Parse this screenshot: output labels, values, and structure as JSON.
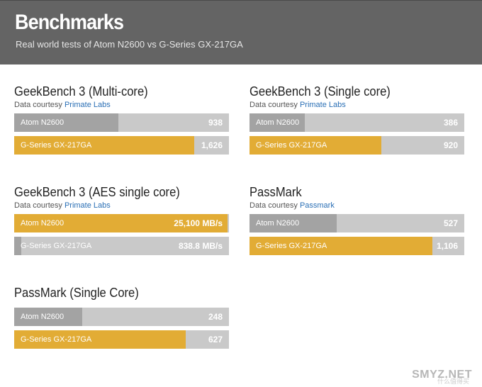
{
  "header": {
    "title": "Benchmarks",
    "subtitle": "Real world tests of Atom N2600 vs G-Series GX-217GA"
  },
  "colors": {
    "atom": "#a3a3a3",
    "gseries": "#e2ac35",
    "track": "#c9c9c9"
  },
  "credit_prefix": "Data courtesy",
  "chart_data": [
    {
      "type": "bar",
      "title": "GeekBench 3 (Multi-core)",
      "source": "Primate Labs",
      "max": 1940,
      "bars": [
        {
          "name": "Atom N2600",
          "value": 938,
          "display": "938",
          "color": "atom"
        },
        {
          "name": "G-Series GX-217GA",
          "value": 1626,
          "display": "1,626",
          "color": "gseries"
        }
      ]
    },
    {
      "type": "bar",
      "title": "GeekBench 3 (Single core)",
      "source": "Primate Labs",
      "max": 1500,
      "bars": [
        {
          "name": "Atom N2600",
          "value": 386,
          "display": "386",
          "color": "atom"
        },
        {
          "name": "G-Series GX-217GA",
          "value": 920,
          "display": "920",
          "color": "gseries"
        }
      ]
    },
    {
      "type": "bar",
      "title": "GeekBench 3 (AES single core)",
      "source": "Primate Labs",
      "max": 25300,
      "bars": [
        {
          "name": "Atom N2600",
          "value": 25100,
          "display": "25,100 MB/s",
          "color": "gseries"
        },
        {
          "name": "G-Series GX-217GA",
          "value": 838.8,
          "display": "838.8 MB/s",
          "color": "atom"
        }
      ]
    },
    {
      "type": "bar",
      "title": "PassMark",
      "source": "Passmark",
      "max": 1300,
      "bars": [
        {
          "name": "Atom N2600",
          "value": 527,
          "display": "527",
          "color": "atom"
        },
        {
          "name": "G-Series GX-217GA",
          "value": 1106,
          "display": "1,106",
          "color": "gseries"
        }
      ]
    },
    {
      "type": "bar",
      "title": "PassMark (Single Core)",
      "source": "",
      "max": 785,
      "bars": [
        {
          "name": "Atom N2600",
          "value": 248,
          "display": "248",
          "color": "atom"
        },
        {
          "name": "G-Series GX-217GA",
          "value": 627,
          "display": "627",
          "color": "gseries"
        }
      ]
    }
  ],
  "watermark": {
    "text": "SMYZ.NET",
    "sub": "什么值得买"
  }
}
